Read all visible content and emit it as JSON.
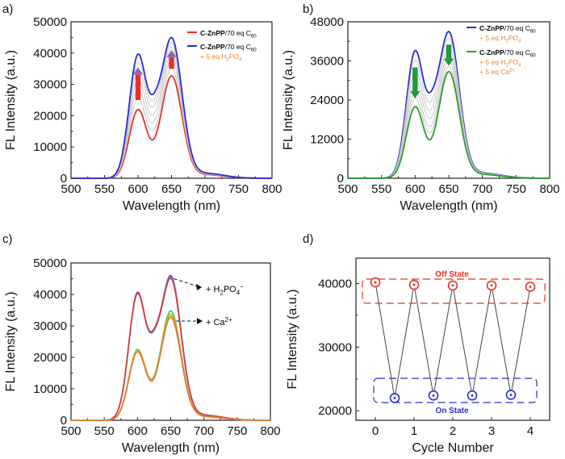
{
  "figure": {
    "panels": [
      "a)",
      "b)",
      "c)",
      "d)"
    ]
  },
  "chart_data": [
    {
      "panel": "a)",
      "type": "line",
      "xlabel": "Wavelength (nm)",
      "ylabel": "FL Intensity (a.u.)",
      "xlim": [
        500,
        800
      ],
      "ylim": [
        0,
        50000
      ],
      "xticks": [
        500,
        550,
        600,
        650,
        700,
        750,
        800
      ],
      "yticks": [
        0,
        10000,
        20000,
        30000,
        40000,
        50000
      ],
      "legend": [
        {
          "text": "C-ZnPP/70 eq C60",
          "color": "#e8302a"
        },
        {
          "text": "C-ZnPP/70 eq C60",
          "sub": "+ 5 eq H2PO4",
          "color": "#2b2bd6"
        }
      ],
      "series": [
        {
          "name": "C-ZnPP/70 eq C60",
          "color": "#e8302a",
          "peak1": 22000,
          "dip": 13000,
          "peak2": 32500
        },
        {
          "color": "#c8c8c8",
          "peak1": 25500,
          "dip": 16000,
          "peak2": 35000
        },
        {
          "color": "#c8c8c8",
          "peak1": 28500,
          "dip": 18500,
          "peak2": 37500
        },
        {
          "color": "#c8c8c8",
          "peak1": 31500,
          "dip": 21000,
          "peak2": 39500
        },
        {
          "color": "#c8c8c8",
          "peak1": 34500,
          "dip": 23500,
          "peak2": 41500
        },
        {
          "color": "#c8c8c8",
          "peak1": 37000,
          "dip": 25500,
          "peak2": 43000
        },
        {
          "name": "C-ZnPP/70 eq C60 + 5 eq H2PO4",
          "color": "#2b2bd6",
          "peak1": 39500,
          "dip": 27500,
          "peak2": 44500
        }
      ],
      "arrows": {
        "direction": "up",
        "color": "#e8302a"
      }
    },
    {
      "panel": "b)",
      "type": "line",
      "xlabel": "Wavelength (nm)",
      "ylabel": "FL Intensity (a.u.)",
      "xlim": [
        500,
        800
      ],
      "ylim": [
        0,
        48000
      ],
      "xticks": [
        500,
        550,
        600,
        650,
        700,
        750,
        800
      ],
      "yticks": [
        0,
        12000,
        24000,
        36000,
        48000
      ],
      "legend": [
        {
          "text": "C-ZnPP/70 eq C60",
          "sub": "+ 5 eq H2PO4",
          "color": "#2b2bd6"
        },
        {
          "text": "C-ZnPP/70 eq C60",
          "sub": "+ 5 eq H2PO4",
          "sub2": "+ 5 eq Ca2+",
          "color": "#2aa02a"
        }
      ],
      "series": [
        {
          "name": "C-ZnPP/70 eq C60 + 5 eq H2PO4",
          "color": "#2b2bd6",
          "peak1": 39000,
          "dip": 27000,
          "peak2": 44500
        },
        {
          "color": "#c8c8c8",
          "peak1": 36000,
          "dip": 24000,
          "peak2": 42500
        },
        {
          "color": "#c8c8c8",
          "peak1": 33000,
          "dip": 21500,
          "peak2": 40000
        },
        {
          "color": "#c8c8c8",
          "peak1": 30000,
          "dip": 19000,
          "peak2": 38000
        },
        {
          "color": "#c8c8c8",
          "peak1": 27000,
          "dip": 16500,
          "peak2": 36000
        },
        {
          "color": "#c8c8c8",
          "peak1": 24500,
          "dip": 14500,
          "peak2": 34000
        },
        {
          "name": "C-ZnPP/70 eq C60 + 5 eq H2PO4 + 5 eq Ca2+",
          "color": "#2aa02a",
          "peak1": 22000,
          "dip": 12500,
          "peak2": 32500
        }
      ],
      "arrows": {
        "direction": "down",
        "color": "#1f9a3a"
      }
    },
    {
      "panel": "c)",
      "type": "line",
      "xlabel": "Wavelength (nm)",
      "ylabel": "FL Intensity (a.u.)",
      "xlim": [
        500,
        800
      ],
      "ylim": [
        0,
        50000
      ],
      "xticks": [
        500,
        550,
        600,
        650,
        700,
        750,
        800
      ],
      "yticks": [
        0,
        10000,
        20000,
        30000,
        40000,
        50000
      ],
      "annotations": [
        {
          "text": "+ H2PO4−",
          "target": 45000
        },
        {
          "text": "+ Ca2+",
          "target": 32500
        }
      ],
      "series": [
        {
          "color": "#6c3ec2",
          "peak1": 40500,
          "dip": 29000,
          "peak2": 45500
        },
        {
          "color": "#3a78d8",
          "peak1": 40200,
          "dip": 28700,
          "peak2": 45200
        },
        {
          "color": "#3fb8d8",
          "peak1": 40000,
          "dip": 28500,
          "peak2": 44800
        },
        {
          "color": "#e8302a",
          "peak1": 40300,
          "dip": 28800,
          "peak2": 44600
        },
        {
          "color": "#46c46a",
          "peak1": 22500,
          "dip": 14000,
          "peak2": 34500
        },
        {
          "color": "#9ac43a",
          "peak1": 22200,
          "dip": 13700,
          "peak2": 33500
        },
        {
          "color": "#e8b020",
          "peak1": 22000,
          "dip": 13500,
          "peak2": 32800
        },
        {
          "color": "#f0702a",
          "peak1": 21800,
          "dip": 13300,
          "peak2": 32500
        }
      ]
    },
    {
      "panel": "d)",
      "type": "scatter",
      "xlabel": "Cycle Number",
      "ylabel": "FL Intensity (a.u.)",
      "xlim": [
        -0.5,
        4.5
      ],
      "ylim": [
        18500,
        44000
      ],
      "xticks": [
        0,
        1,
        2,
        3,
        4
      ],
      "yticks": [
        20000,
        30000,
        40000
      ],
      "series": [
        {
          "name": "Off State",
          "color": "#e8302a",
          "x": [
            0,
            1,
            2,
            3,
            4
          ],
          "y": [
            40200,
            39800,
            39700,
            39700,
            39500
          ]
        },
        {
          "name": "On State",
          "color": "#2b2bd6",
          "x": [
            0.5,
            1.5,
            2.5,
            3.5
          ],
          "y": [
            22000,
            22400,
            22400,
            22500
          ]
        }
      ],
      "boxes": [
        {
          "text": "Off State",
          "color": "#e8302a"
        },
        {
          "text": "On State",
          "color": "#2b2bd6"
        }
      ]
    }
  ]
}
